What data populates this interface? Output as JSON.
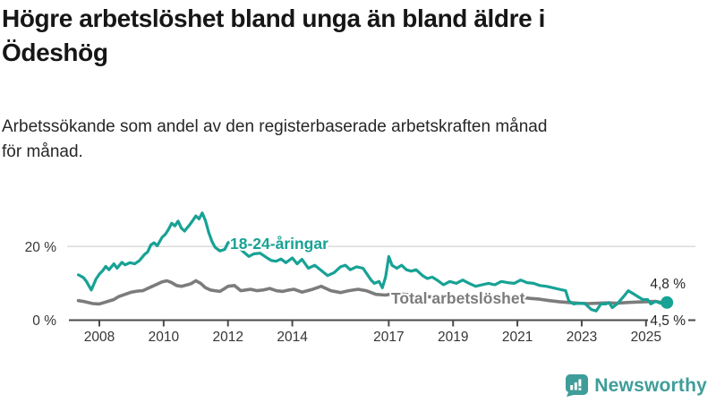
{
  "title_lines": [
    "Högre arbetslöshet bland unga än bland äldre i",
    "Ödeshög"
  ],
  "subtitle_lines": [
    "Arbetssökande som andel av den registerbaserade arbetskraften månad",
    "för månad."
  ],
  "logo": {
    "text": "Newsworthy",
    "icon": "bar-chart-speech-bubble-icon",
    "color": "#3F9D99"
  },
  "colors": {
    "youth": "#17A295",
    "total": "#7C7C7C",
    "grid": "#DBDBDB",
    "axis": "#4A4A4A",
    "label_text": "#262626"
  },
  "chart_data": {
    "type": "line",
    "title": "Högre arbetslöshet bland unga än bland äldre i Ödeshög",
    "subtitle": "Arbetssökande som andel av den registerbaserade arbetskraften månad för månad.",
    "unit": "%",
    "grid": "horizontal-20-only",
    "legend_position": "inline-labels-on-lines",
    "ylim": [
      0,
      30
    ],
    "x_range": [
      2007.35,
      2025.65
    ],
    "y_ticks": [
      {
        "value": 0,
        "label": "0 %"
      },
      {
        "value": 20,
        "label": "20 %"
      }
    ],
    "x_ticks": [
      {
        "year": 2008,
        "label": "2008"
      },
      {
        "year": 2010,
        "label": "2010"
      },
      {
        "year": 2012,
        "label": "2012"
      },
      {
        "year": 2014,
        "label": "2014"
      },
      {
        "year": 2017,
        "label": "2017"
      },
      {
        "year": 2019,
        "label": "2019"
      },
      {
        "year": 2021,
        "label": "2021"
      },
      {
        "year": 2023,
        "label": "2023"
      },
      {
        "year": 2025,
        "label": "2025"
      }
    ],
    "series": [
      {
        "name": "18-24-aringar",
        "label": "18-24-åringar",
        "color": "#17A295",
        "end_label": "4,8 %",
        "end_value": 4.8,
        "points": [
          [
            2007.35,
            12.3
          ],
          [
            2007.5,
            11.6
          ],
          [
            2007.6,
            10.5
          ],
          [
            2007.75,
            8.2
          ],
          [
            2007.9,
            11.2
          ],
          [
            2008.0,
            12.5
          ],
          [
            2008.1,
            13.4
          ],
          [
            2008.2,
            14.6
          ],
          [
            2008.3,
            13.7
          ],
          [
            2008.45,
            15.3
          ],
          [
            2008.55,
            14.1
          ],
          [
            2008.7,
            15.7
          ],
          [
            2008.8,
            15.0
          ],
          [
            2008.95,
            15.6
          ],
          [
            2009.1,
            15.3
          ],
          [
            2009.25,
            16.2
          ],
          [
            2009.4,
            17.8
          ],
          [
            2009.5,
            18.5
          ],
          [
            2009.6,
            20.4
          ],
          [
            2009.7,
            21.0
          ],
          [
            2009.8,
            20.2
          ],
          [
            2009.95,
            22.5
          ],
          [
            2010.05,
            23.3
          ],
          [
            2010.15,
            24.6
          ],
          [
            2010.25,
            26.3
          ],
          [
            2010.35,
            25.6
          ],
          [
            2010.45,
            26.9
          ],
          [
            2010.55,
            25.0
          ],
          [
            2010.65,
            24.2
          ],
          [
            2010.8,
            25.8
          ],
          [
            2010.9,
            27.0
          ],
          [
            2011.0,
            28.3
          ],
          [
            2011.1,
            27.5
          ],
          [
            2011.2,
            29.1
          ],
          [
            2011.3,
            27.0
          ],
          [
            2011.4,
            23.8
          ],
          [
            2011.5,
            21.4
          ],
          [
            2011.6,
            19.8
          ],
          [
            2011.75,
            18.8
          ],
          [
            2011.9,
            19.2
          ],
          [
            2012.0,
            21.0
          ],
          [
            2012.1,
            21.4
          ],
          [
            2012.3,
            20.0
          ],
          [
            2012.5,
            18.4
          ],
          [
            2012.65,
            17.3
          ],
          [
            2012.8,
            18.0
          ],
          [
            2013.0,
            18.2
          ],
          [
            2013.2,
            17.0
          ],
          [
            2013.35,
            16.2
          ],
          [
            2013.5,
            16.0
          ],
          [
            2013.65,
            16.6
          ],
          [
            2013.8,
            15.6
          ],
          [
            2014.0,
            16.9
          ],
          [
            2014.15,
            15.3
          ],
          [
            2014.3,
            16.5
          ],
          [
            2014.5,
            14.1
          ],
          [
            2014.7,
            14.9
          ],
          [
            2014.9,
            13.5
          ],
          [
            2015.1,
            12.1
          ],
          [
            2015.3,
            12.9
          ],
          [
            2015.5,
            14.5
          ],
          [
            2015.65,
            14.9
          ],
          [
            2015.8,
            13.7
          ],
          [
            2016.0,
            14.5
          ],
          [
            2016.2,
            14.1
          ],
          [
            2016.45,
            10.9
          ],
          [
            2016.55,
            10.0
          ],
          [
            2016.7,
            10.5
          ],
          [
            2016.8,
            8.8
          ],
          [
            2016.9,
            11.7
          ],
          [
            2017.0,
            17.3
          ],
          [
            2017.1,
            14.9
          ],
          [
            2017.25,
            14.1
          ],
          [
            2017.4,
            14.9
          ],
          [
            2017.55,
            13.7
          ],
          [
            2017.7,
            13.3
          ],
          [
            2017.85,
            13.7
          ],
          [
            2018.05,
            12.1
          ],
          [
            2018.2,
            11.3
          ],
          [
            2018.35,
            11.7
          ],
          [
            2018.5,
            10.9
          ],
          [
            2018.7,
            9.6
          ],
          [
            2018.9,
            10.5
          ],
          [
            2019.1,
            10.0
          ],
          [
            2019.3,
            10.9
          ],
          [
            2019.5,
            10.0
          ],
          [
            2019.7,
            9.2
          ],
          [
            2019.9,
            9.6
          ],
          [
            2020.1,
            10.0
          ],
          [
            2020.3,
            9.6
          ],
          [
            2020.5,
            10.5
          ],
          [
            2020.7,
            10.2
          ],
          [
            2020.9,
            10.0
          ],
          [
            2021.1,
            10.9
          ],
          [
            2021.3,
            10.2
          ],
          [
            2021.5,
            10.0
          ],
          [
            2021.7,
            9.4
          ],
          [
            2021.9,
            9.2
          ],
          [
            2022.1,
            8.8
          ],
          [
            2022.3,
            8.4
          ],
          [
            2022.5,
            8.0
          ],
          [
            2022.6,
            5.2
          ],
          [
            2022.75,
            4.4
          ],
          [
            2022.9,
            4.6
          ],
          [
            2023.1,
            4.5
          ],
          [
            2023.3,
            2.9
          ],
          [
            2023.45,
            2.5
          ],
          [
            2023.6,
            4.4
          ],
          [
            2023.75,
            4.4
          ],
          [
            2023.85,
            4.8
          ],
          [
            2023.95,
            3.4
          ],
          [
            2024.1,
            4.4
          ],
          [
            2024.3,
            6.4
          ],
          [
            2024.45,
            8.0
          ],
          [
            2024.6,
            7.2
          ],
          [
            2024.75,
            6.4
          ],
          [
            2024.9,
            5.6
          ],
          [
            2025.05,
            5.6
          ],
          [
            2025.15,
            4.4
          ],
          [
            2025.3,
            5.1
          ],
          [
            2025.45,
            4.6
          ],
          [
            2025.65,
            4.8
          ]
        ]
      },
      {
        "name": "total-arbetsloshet",
        "label": "Total arbetslöshet",
        "color": "#7C7C7C",
        "end_label": "4,5 %",
        "end_value": 4.5,
        "points": [
          [
            2007.35,
            5.3
          ],
          [
            2007.5,
            5.1
          ],
          [
            2007.65,
            4.8
          ],
          [
            2007.8,
            4.5
          ],
          [
            2008.0,
            4.4
          ],
          [
            2008.15,
            4.8
          ],
          [
            2008.3,
            5.2
          ],
          [
            2008.45,
            5.6
          ],
          [
            2008.6,
            6.4
          ],
          [
            2008.8,
            7.0
          ],
          [
            2009.0,
            7.6
          ],
          [
            2009.2,
            7.9
          ],
          [
            2009.35,
            8.0
          ],
          [
            2009.5,
            8.6
          ],
          [
            2009.65,
            9.2
          ],
          [
            2009.8,
            9.8
          ],
          [
            2009.95,
            10.4
          ],
          [
            2010.1,
            10.7
          ],
          [
            2010.25,
            10.2
          ],
          [
            2010.4,
            9.4
          ],
          [
            2010.55,
            9.2
          ],
          [
            2010.7,
            9.5
          ],
          [
            2010.85,
            9.9
          ],
          [
            2011.0,
            10.7
          ],
          [
            2011.15,
            10.0
          ],
          [
            2011.3,
            8.8
          ],
          [
            2011.45,
            8.2
          ],
          [
            2011.6,
            8.0
          ],
          [
            2011.75,
            7.8
          ],
          [
            2011.9,
            8.6
          ],
          [
            2012.0,
            9.2
          ],
          [
            2012.2,
            9.4
          ],
          [
            2012.4,
            8.0
          ],
          [
            2012.55,
            8.2
          ],
          [
            2012.7,
            8.4
          ],
          [
            2012.9,
            8.0
          ],
          [
            2013.1,
            8.2
          ],
          [
            2013.3,
            8.6
          ],
          [
            2013.5,
            8.0
          ],
          [
            2013.7,
            7.8
          ],
          [
            2013.9,
            8.2
          ],
          [
            2014.05,
            8.4
          ],
          [
            2014.3,
            7.6
          ],
          [
            2014.6,
            8.3
          ],
          [
            2014.9,
            9.2
          ],
          [
            2015.2,
            8.0
          ],
          [
            2015.5,
            7.5
          ],
          [
            2015.75,
            8.0
          ],
          [
            2016.05,
            8.4
          ],
          [
            2016.3,
            8.0
          ],
          [
            2016.6,
            7.0
          ],
          [
            2016.9,
            6.8
          ],
          [
            2017.2,
            7.3
          ],
          [
            2017.5,
            7.0
          ],
          [
            2017.8,
            6.7
          ],
          [
            2018.1,
            6.4
          ],
          [
            2018.4,
            6.3
          ],
          [
            2018.7,
            6.1
          ],
          [
            2019.0,
            6.2
          ],
          [
            2019.3,
            6.0
          ],
          [
            2019.6,
            5.9
          ],
          [
            2019.9,
            6.1
          ],
          [
            2020.2,
            6.4
          ],
          [
            2020.5,
            6.6
          ],
          [
            2020.8,
            6.4
          ],
          [
            2021.1,
            6.2
          ],
          [
            2021.4,
            5.9
          ],
          [
            2021.7,
            5.7
          ],
          [
            2022.0,
            5.3
          ],
          [
            2022.3,
            5.0
          ],
          [
            2022.6,
            4.8
          ],
          [
            2022.9,
            4.6
          ],
          [
            2023.2,
            4.5
          ],
          [
            2023.5,
            4.6
          ],
          [
            2023.8,
            4.7
          ],
          [
            2024.1,
            4.6
          ],
          [
            2024.4,
            4.8
          ],
          [
            2024.7,
            4.9
          ],
          [
            2025.0,
            5.0
          ],
          [
            2025.3,
            5.1
          ],
          [
            2025.65,
            4.5
          ]
        ]
      }
    ]
  }
}
